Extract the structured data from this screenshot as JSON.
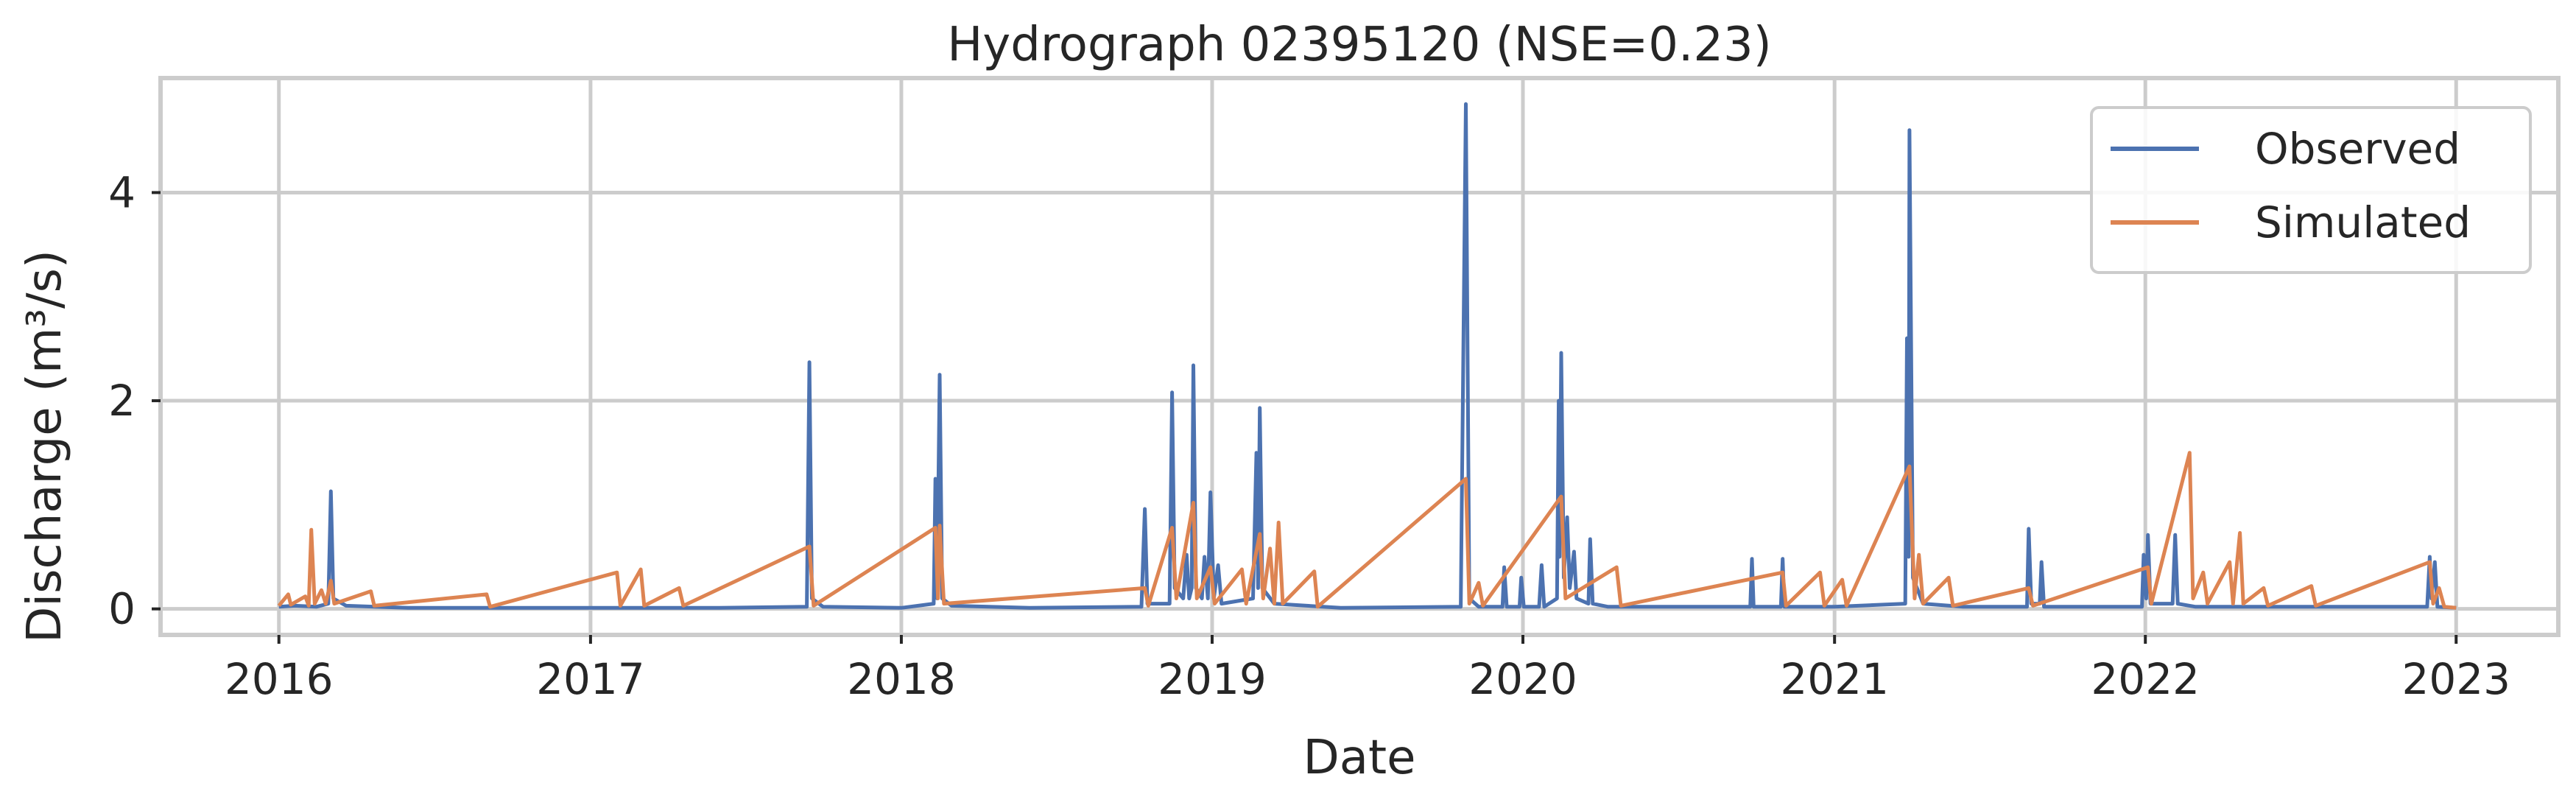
{
  "chart_data": {
    "type": "line",
    "title": "Hydrograph 02395120  (NSE=0.23)",
    "xlabel": "Date",
    "ylabel": "Discharge (m³/s)",
    "xlim": [
      "2015-08-15",
      "2023-05-01"
    ],
    "ylim": [
      -0.25,
      5.1
    ],
    "xticks": [
      {
        "label": "2016",
        "date": "2016-01-01"
      },
      {
        "label": "2017",
        "date": "2017-01-01"
      },
      {
        "label": "2018",
        "date": "2018-01-01"
      },
      {
        "label": "2019",
        "date": "2019-01-01"
      },
      {
        "label": "2020",
        "date": "2020-01-01"
      },
      {
        "label": "2021",
        "date": "2021-01-01"
      },
      {
        "label": "2022",
        "date": "2022-01-01"
      },
      {
        "label": "2023",
        "date": "2023-01-01"
      }
    ],
    "yticks": [
      {
        "label": "0",
        "value": 0
      },
      {
        "label": "2",
        "value": 2
      },
      {
        "label": "4",
        "value": 4
      }
    ],
    "grid": true,
    "legend": "top-right",
    "series": [
      {
        "name": "Observed",
        "color": "#4c72b0",
        "points": [
          [
            "2016-01-01",
            0.02
          ],
          [
            "2016-01-20",
            0.03
          ],
          [
            "2016-02-14",
            0.02
          ],
          [
            "2016-02-28",
            0.05
          ],
          [
            "2016-03-02",
            1.13
          ],
          [
            "2016-03-05",
            0.1
          ],
          [
            "2016-03-20",
            0.03
          ],
          [
            "2016-06-01",
            0.01
          ],
          [
            "2017-01-01",
            0.01
          ],
          [
            "2017-06-01",
            0.01
          ],
          [
            "2017-09-12",
            0.02
          ],
          [
            "2017-09-15",
            2.37
          ],
          [
            "2017-09-18",
            0.1
          ],
          [
            "2017-10-01",
            0.02
          ],
          [
            "2018-01-01",
            0.01
          ],
          [
            "2018-02-08",
            0.05
          ],
          [
            "2018-02-10",
            1.25
          ],
          [
            "2018-02-12",
            0.1
          ],
          [
            "2018-02-15",
            2.25
          ],
          [
            "2018-02-18",
            0.1
          ],
          [
            "2018-03-01",
            0.03
          ],
          [
            "2018-06-01",
            0.01
          ],
          [
            "2018-10-10",
            0.02
          ],
          [
            "2018-10-14",
            0.96
          ],
          [
            "2018-10-17",
            0.05
          ],
          [
            "2018-11-12",
            0.05
          ],
          [
            "2018-11-15",
            2.08
          ],
          [
            "2018-11-18",
            0.2
          ],
          [
            "2018-11-28",
            0.1
          ],
          [
            "2018-12-02",
            0.52
          ],
          [
            "2018-12-05",
            0.1
          ],
          [
            "2018-12-08",
            0.2
          ],
          [
            "2018-12-10",
            2.34
          ],
          [
            "2018-12-13",
            0.2
          ],
          [
            "2018-12-20",
            0.1
          ],
          [
            "2018-12-23",
            0.5
          ],
          [
            "2018-12-27",
            0.1
          ],
          [
            "2018-12-30",
            1.12
          ],
          [
            "2019-01-03",
            0.1
          ],
          [
            "2019-01-08",
            0.42
          ],
          [
            "2019-01-12",
            0.05
          ],
          [
            "2019-02-18",
            0.1
          ],
          [
            "2019-02-22",
            1.5
          ],
          [
            "2019-02-24",
            0.2
          ],
          [
            "2019-02-26",
            1.93
          ],
          [
            "2019-03-01",
            0.2
          ],
          [
            "2019-03-15",
            0.05
          ],
          [
            "2019-06-01",
            0.01
          ],
          [
            "2019-10-20",
            0.02
          ],
          [
            "2019-10-26",
            4.85
          ],
          [
            "2019-10-30",
            0.1
          ],
          [
            "2019-11-10",
            0.02
          ],
          [
            "2019-12-08",
            0.02
          ],
          [
            "2019-12-10",
            0.4
          ],
          [
            "2019-12-13",
            0.02
          ],
          [
            "2019-12-28",
            0.02
          ],
          [
            "2019-12-30",
            0.3
          ],
          [
            "2020-01-02",
            0.02
          ],
          [
            "2020-01-20",
            0.02
          ],
          [
            "2020-01-23",
            0.42
          ],
          [
            "2020-01-26",
            0.02
          ],
          [
            "2020-02-10",
            0.1
          ],
          [
            "2020-02-12",
            2.0
          ],
          [
            "2020-02-13",
            0.5
          ],
          [
            "2020-02-15",
            2.46
          ],
          [
            "2020-02-18",
            0.3
          ],
          [
            "2020-02-22",
            0.88
          ],
          [
            "2020-02-25",
            0.2
          ],
          [
            "2020-03-01",
            0.55
          ],
          [
            "2020-03-04",
            0.1
          ],
          [
            "2020-03-18",
            0.05
          ],
          [
            "2020-03-20",
            0.67
          ],
          [
            "2020-03-23",
            0.05
          ],
          [
            "2020-04-10",
            0.02
          ],
          [
            "2020-09-24",
            0.02
          ],
          [
            "2020-09-26",
            0.48
          ],
          [
            "2020-09-28",
            0.02
          ],
          [
            "2020-10-30",
            0.02
          ],
          [
            "2020-11-01",
            0.48
          ],
          [
            "2020-11-03",
            0.02
          ],
          [
            "2021-01-01",
            0.02
          ],
          [
            "2021-03-25",
            0.05
          ],
          [
            "2021-03-27",
            2.6
          ],
          [
            "2021-03-29",
            0.5
          ],
          [
            "2021-03-30",
            4.6
          ],
          [
            "2021-04-03",
            0.3
          ],
          [
            "2021-04-15",
            0.05
          ],
          [
            "2021-06-01",
            0.02
          ],
          [
            "2021-08-15",
            0.02
          ],
          [
            "2021-08-17",
            0.77
          ],
          [
            "2021-08-20",
            0.05
          ],
          [
            "2021-08-30",
            0.05
          ],
          [
            "2021-09-01",
            0.45
          ],
          [
            "2021-09-04",
            0.02
          ],
          [
            "2021-12-28",
            0.02
          ],
          [
            "2021-12-30",
            0.52
          ],
          [
            "2022-01-02",
            0.1
          ],
          [
            "2022-01-04",
            0.71
          ],
          [
            "2022-01-07",
            0.05
          ],
          [
            "2022-02-02",
            0.05
          ],
          [
            "2022-02-05",
            0.71
          ],
          [
            "2022-02-08",
            0.05
          ],
          [
            "2022-03-01",
            0.02
          ],
          [
            "2022-11-28",
            0.02
          ],
          [
            "2022-12-01",
            0.5
          ],
          [
            "2022-12-03",
            0.1
          ],
          [
            "2022-12-07",
            0.45
          ],
          [
            "2022-12-10",
            0.02
          ],
          [
            "2023-01-01",
            0.01
          ]
        ]
      },
      {
        "name": "Simulated",
        "color": "#dd8452",
        "points": [
          [
            "2016-01-01",
            0.03
          ],
          [
            "2016-01-12",
            0.14
          ],
          [
            "2016-01-15",
            0.04
          ],
          [
            "2016-02-01",
            0.12
          ],
          [
            "2016-02-05",
            0.03
          ],
          [
            "2016-02-08",
            0.76
          ],
          [
            "2016-02-12",
            0.05
          ],
          [
            "2016-02-20",
            0.18
          ],
          [
            "2016-02-25",
            0.05
          ],
          [
            "2016-03-02",
            0.27
          ],
          [
            "2016-03-06",
            0.05
          ],
          [
            "2016-04-18",
            0.17
          ],
          [
            "2016-04-22",
            0.03
          ],
          [
            "2016-09-01",
            0.14
          ],
          [
            "2016-09-05",
            0.02
          ],
          [
            "2017-02-01",
            0.35
          ],
          [
            "2017-02-05",
            0.03
          ],
          [
            "2017-03-01",
            0.38
          ],
          [
            "2017-03-05",
            0.03
          ],
          [
            "2017-04-15",
            0.2
          ],
          [
            "2017-04-20",
            0.03
          ],
          [
            "2017-09-15",
            0.6
          ],
          [
            "2017-09-20",
            0.03
          ],
          [
            "2018-02-10",
            0.78
          ],
          [
            "2018-02-13",
            0.1
          ],
          [
            "2018-02-15",
            0.8
          ],
          [
            "2018-02-20",
            0.05
          ],
          [
            "2018-10-14",
            0.2
          ],
          [
            "2018-10-18",
            0.03
          ],
          [
            "2018-11-15",
            0.78
          ],
          [
            "2018-11-20",
            0.1
          ],
          [
            "2018-12-10",
            1.02
          ],
          [
            "2018-12-14",
            0.1
          ],
          [
            "2018-12-30",
            0.4
          ],
          [
            "2019-01-04",
            0.05
          ],
          [
            "2019-02-05",
            0.38
          ],
          [
            "2019-02-10",
            0.05
          ],
          [
            "2019-02-26",
            0.72
          ],
          [
            "2019-03-02",
            0.1
          ],
          [
            "2019-03-10",
            0.58
          ],
          [
            "2019-03-15",
            0.05
          ],
          [
            "2019-03-20",
            0.83
          ],
          [
            "2019-03-25",
            0.05
          ],
          [
            "2019-05-01",
            0.36
          ],
          [
            "2019-05-05",
            0.02
          ],
          [
            "2019-10-26",
            1.25
          ],
          [
            "2019-10-30",
            0.05
          ],
          [
            "2019-11-10",
            0.25
          ],
          [
            "2019-11-15",
            0.03
          ],
          [
            "2020-02-15",
            1.08
          ],
          [
            "2020-02-20",
            0.1
          ],
          [
            "2020-04-20",
            0.4
          ],
          [
            "2020-04-25",
            0.03
          ],
          [
            "2020-11-01",
            0.35
          ],
          [
            "2020-11-05",
            0.03
          ],
          [
            "2020-12-15",
            0.35
          ],
          [
            "2020-12-20",
            0.03
          ],
          [
            "2021-01-10",
            0.28
          ],
          [
            "2021-01-15",
            0.03
          ],
          [
            "2021-03-30",
            1.37
          ],
          [
            "2021-04-05",
            0.1
          ],
          [
            "2021-04-10",
            0.52
          ],
          [
            "2021-04-15",
            0.05
          ],
          [
            "2021-05-15",
            0.3
          ],
          [
            "2021-05-20",
            0.03
          ],
          [
            "2021-08-17",
            0.2
          ],
          [
            "2021-08-22",
            0.03
          ],
          [
            "2022-01-04",
            0.4
          ],
          [
            "2022-01-08",
            0.05
          ],
          [
            "2022-02-22",
            1.5
          ],
          [
            "2022-02-26",
            0.1
          ],
          [
            "2022-03-10",
            0.35
          ],
          [
            "2022-03-15",
            0.05
          ],
          [
            "2022-04-10",
            0.45
          ],
          [
            "2022-04-14",
            0.05
          ],
          [
            "2022-04-22",
            0.73
          ],
          [
            "2022-04-26",
            0.05
          ],
          [
            "2022-05-20",
            0.2
          ],
          [
            "2022-05-25",
            0.03
          ],
          [
            "2022-07-15",
            0.22
          ],
          [
            "2022-07-20",
            0.03
          ],
          [
            "2022-12-01",
            0.45
          ],
          [
            "2022-12-05",
            0.05
          ],
          [
            "2022-12-12",
            0.2
          ],
          [
            "2022-12-18",
            0.02
          ],
          [
            "2023-01-01",
            0.01
          ]
        ]
      }
    ]
  }
}
